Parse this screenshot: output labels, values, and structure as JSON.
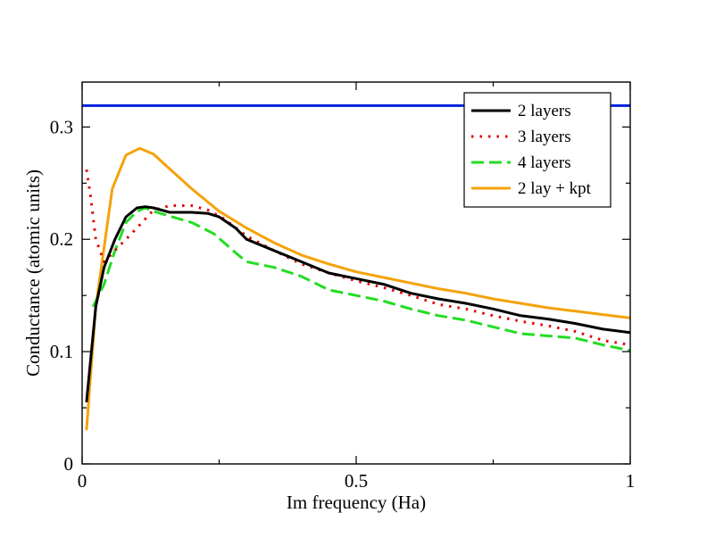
{
  "chart_data": {
    "type": "line",
    "title": "",
    "xlabel": "Im frequency (Ha)",
    "ylabel": "Conductance (atomic units)",
    "xlim": [
      0,
      1
    ],
    "ylim": [
      0,
      0.34
    ],
    "x_ticks": [
      0,
      0.5,
      1
    ],
    "x_tick_labels": [
      "0",
      "0.5",
      "1"
    ],
    "y_ticks": [
      0,
      0.1,
      0.2,
      0.3
    ],
    "y_tick_labels": [
      "0",
      "0.1",
      "0.2",
      "0.3"
    ],
    "grid": false,
    "legend_position": "top-right",
    "reference_line": {
      "y": 0.319,
      "color": "#0022dd"
    },
    "series": [
      {
        "name": "2 layers",
        "color": "#000000",
        "dash": "solid",
        "x": [
          0.008,
          0.025,
          0.04,
          0.06,
          0.08,
          0.1,
          0.115,
          0.13,
          0.16,
          0.2,
          0.23,
          0.25,
          0.28,
          0.3,
          0.35,
          0.4,
          0.45,
          0.5,
          0.55,
          0.6,
          0.65,
          0.7,
          0.75,
          0.8,
          0.85,
          0.9,
          0.95,
          1.0
        ],
        "values": [
          0.055,
          0.14,
          0.175,
          0.2,
          0.22,
          0.228,
          0.229,
          0.228,
          0.224,
          0.224,
          0.223,
          0.22,
          0.21,
          0.2,
          0.19,
          0.18,
          0.17,
          0.165,
          0.16,
          0.152,
          0.147,
          0.143,
          0.138,
          0.132,
          0.129,
          0.125,
          0.12,
          0.117
        ]
      },
      {
        "name": "3 layers",
        "color": "#e00000",
        "dash": "dotted",
        "x": [
          0.008,
          0.015,
          0.025,
          0.04,
          0.06,
          0.08,
          0.1,
          0.13,
          0.16,
          0.2,
          0.23,
          0.26,
          0.3,
          0.35,
          0.4,
          0.45,
          0.5,
          0.55,
          0.6,
          0.65,
          0.7,
          0.75,
          0.8,
          0.85,
          0.9,
          0.95,
          1.0
        ],
        "values": [
          0.262,
          0.24,
          0.2,
          0.18,
          0.19,
          0.2,
          0.21,
          0.226,
          0.23,
          0.23,
          0.226,
          0.218,
          0.203,
          0.19,
          0.178,
          0.17,
          0.163,
          0.157,
          0.15,
          0.142,
          0.138,
          0.132,
          0.127,
          0.123,
          0.118,
          0.11,
          0.106
        ]
      },
      {
        "name": "4 layers",
        "color": "#22dd22",
        "dash": "dashed",
        "x": [
          0.02,
          0.04,
          0.06,
          0.08,
          0.1,
          0.115,
          0.13,
          0.15,
          0.2,
          0.24,
          0.28,
          0.3,
          0.35,
          0.4,
          0.45,
          0.5,
          0.55,
          0.6,
          0.65,
          0.7,
          0.75,
          0.8,
          0.85,
          0.9,
          0.95,
          1.0
        ],
        "values": [
          0.14,
          0.16,
          0.19,
          0.215,
          0.225,
          0.228,
          0.225,
          0.222,
          0.215,
          0.205,
          0.188,
          0.18,
          0.175,
          0.167,
          0.155,
          0.15,
          0.145,
          0.138,
          0.132,
          0.128,
          0.122,
          0.116,
          0.114,
          0.112,
          0.106,
          0.101
        ]
      },
      {
        "name": "2 lay + kpt",
        "color": "#f5a20a",
        "dash": "solid",
        "x": [
          0.008,
          0.025,
          0.055,
          0.08,
          0.105,
          0.13,
          0.15,
          0.2,
          0.25,
          0.3,
          0.35,
          0.4,
          0.45,
          0.5,
          0.55,
          0.6,
          0.65,
          0.7,
          0.75,
          0.8,
          0.85,
          0.9,
          0.95,
          1.0
        ],
        "values": [
          0.03,
          0.14,
          0.245,
          0.275,
          0.281,
          0.276,
          0.267,
          0.245,
          0.225,
          0.21,
          0.197,
          0.186,
          0.178,
          0.171,
          0.166,
          0.161,
          0.156,
          0.152,
          0.147,
          0.143,
          0.139,
          0.136,
          0.133,
          0.13
        ]
      }
    ]
  }
}
